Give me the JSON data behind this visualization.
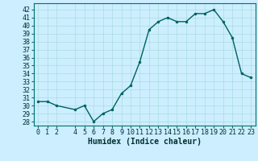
{
  "x": [
    0,
    1,
    2,
    4,
    5,
    6,
    7,
    8,
    9,
    10,
    11,
    12,
    13,
    14,
    15,
    16,
    17,
    18,
    19,
    20,
    21,
    22,
    23
  ],
  "y": [
    30.5,
    30.5,
    30.0,
    29.5,
    30.0,
    28.0,
    29.0,
    29.5,
    31.5,
    32.5,
    35.5,
    39.5,
    40.5,
    41.0,
    40.5,
    40.5,
    41.5,
    41.5,
    42.0,
    40.5,
    38.5,
    34.0,
    33.5
  ],
  "line_color": "#006060",
  "marker_color": "#006060",
  "bg_color": "#cceeff",
  "grid_color_major": "#aadddd",
  "xlabel": "Humidex (Indice chaleur)",
  "ylabel_ticks": [
    28,
    29,
    30,
    31,
    32,
    33,
    34,
    35,
    36,
    37,
    38,
    39,
    40,
    41,
    42
  ],
  "xticks": [
    0,
    1,
    2,
    4,
    5,
    6,
    7,
    8,
    9,
    10,
    11,
    12,
    13,
    14,
    15,
    16,
    17,
    18,
    19,
    20,
    21,
    22,
    23
  ],
  "ylim": [
    27.5,
    42.8
  ],
  "xlim": [
    -0.5,
    23.5
  ],
  "label_fontsize": 7.0,
  "tick_fontsize": 6.0,
  "spine_color": "#007070"
}
